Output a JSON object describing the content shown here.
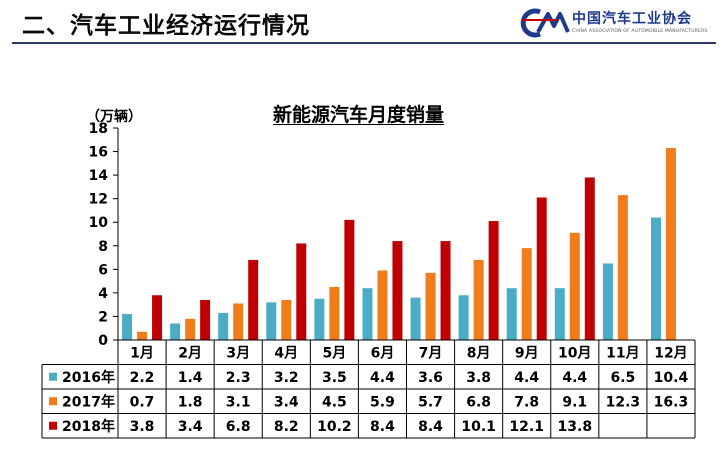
{
  "header": {
    "title": "二、汽车工业经济运行情况",
    "logo_name": "中国汽车工业协会",
    "logo_sub": "CHINA ASSOCIATION OF AUTOMOBILE MANUFACTURERS"
  },
  "colors": {
    "s2016": "#4bacc6",
    "s2017": "#f07d1a",
    "s2018": "#c00000",
    "axis": "#000000",
    "grid": "#000000",
    "header_line": "#2a3a6a"
  },
  "chart_data": {
    "type": "bar",
    "title": "新能源汽车月度销量",
    "ylabel": "（万辆）",
    "xlabel": "",
    "ylim": [
      0,
      18
    ],
    "yticks": [
      0,
      2,
      4,
      6,
      8,
      10,
      12,
      14,
      16,
      18
    ],
    "grid": false,
    "legend": "data-table-left",
    "categories": [
      "1月",
      "2月",
      "3月",
      "4月",
      "5月",
      "6月",
      "7月",
      "8月",
      "9月",
      "10月",
      "11月",
      "12月"
    ],
    "series": [
      {
        "name": "2016年",
        "color_key": "s2016",
        "values": [
          2.2,
          1.4,
          2.3,
          3.2,
          3.5,
          4.4,
          3.6,
          3.8,
          4.4,
          4.4,
          6.5,
          10.4
        ]
      },
      {
        "name": "2017年",
        "color_key": "s2017",
        "values": [
          0.7,
          1.8,
          3.1,
          3.4,
          4.5,
          5.9,
          5.7,
          6.8,
          7.8,
          9.1,
          12.3,
          16.3
        ]
      },
      {
        "name": "2018年",
        "color_key": "s2018",
        "values": [
          3.8,
          3.4,
          6.8,
          8.2,
          10.2,
          8.4,
          8.4,
          10.1,
          12.1,
          13.8,
          null,
          null
        ]
      }
    ]
  }
}
